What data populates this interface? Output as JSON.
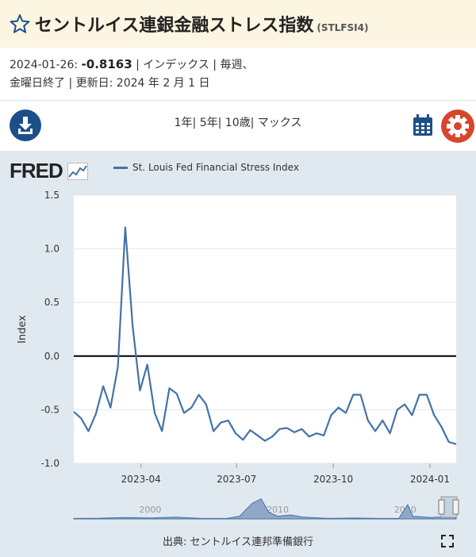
{
  "header": {
    "title": "セントルイス連銀金融ストレス指数",
    "code": "(STLFSI4)"
  },
  "meta": {
    "date": "2024-01-26:",
    "value": "-0.8163",
    "units_freq": "| インデックス | 毎週、",
    "line2": "金曜日終了 | 更新日: 2024 年 2 月 1 日"
  },
  "ranges": [
    "1年",
    "5年",
    "10歳",
    "マックス"
  ],
  "branding": {
    "logo": "FRED"
  },
  "source": "出典: セントルイス連邦準備銀行",
  "colors": {
    "series": "#4572a7",
    "header_bg": "#fbf5e1",
    "plot_bg": "#e1e9f0",
    "accent_blue": "#1b4f8a",
    "gear": "#d6452c"
  },
  "icons": [
    "star-icon",
    "download-icon",
    "calendar-icon",
    "gear-icon",
    "fred-chart-icon",
    "expand-icon"
  ],
  "chart_data": {
    "type": "line",
    "ylabel": "Index",
    "ylim": [
      -1.0,
      1.5
    ],
    "yticks": [
      1.5,
      1.0,
      0.5,
      0.0,
      -0.5,
      -1.0
    ],
    "ytick_labels": [
      "1.5",
      "1.0",
      "0.5",
      "0.0",
      "-0.5",
      "-1.0"
    ],
    "xticks": [
      {
        "date": "2023-04-01",
        "label": "2023-04"
      },
      {
        "date": "2023-07-01",
        "label": "2023-07"
      },
      {
        "date": "2023-10-01",
        "label": "2023-10"
      },
      {
        "date": "2024-01-01",
        "label": "2024-01"
      }
    ],
    "xrange": [
      "2023-01-27",
      "2024-01-26"
    ],
    "reference_line": 0,
    "grid": true,
    "legend": "top-left",
    "series": [
      {
        "name": "St. Louis Fed Financial Stress Index",
        "x": [
          "2023-01-27",
          "2023-02-03",
          "2023-02-10",
          "2023-02-17",
          "2023-02-24",
          "2023-03-03",
          "2023-03-10",
          "2023-03-17",
          "2023-03-24",
          "2023-03-31",
          "2023-04-07",
          "2023-04-14",
          "2023-04-21",
          "2023-04-28",
          "2023-05-05",
          "2023-05-12",
          "2023-05-19",
          "2023-05-26",
          "2023-06-02",
          "2023-06-09",
          "2023-06-16",
          "2023-06-23",
          "2023-06-30",
          "2023-07-07",
          "2023-07-14",
          "2023-07-21",
          "2023-07-28",
          "2023-08-04",
          "2023-08-11",
          "2023-08-18",
          "2023-08-25",
          "2023-09-01",
          "2023-09-08",
          "2023-09-15",
          "2023-09-22",
          "2023-09-29",
          "2023-10-06",
          "2023-10-13",
          "2023-10-20",
          "2023-10-27",
          "2023-11-03",
          "2023-11-10",
          "2023-11-17",
          "2023-11-24",
          "2023-12-01",
          "2023-12-08",
          "2023-12-15",
          "2023-12-22",
          "2023-12-29",
          "2024-01-05",
          "2024-01-12",
          "2024-01-19",
          "2024-01-26"
        ],
        "values": [
          -0.52,
          -0.58,
          -0.7,
          -0.54,
          -0.28,
          -0.48,
          -0.1,
          1.2,
          0.28,
          -0.32,
          -0.08,
          -0.53,
          -0.7,
          -0.3,
          -0.35,
          -0.53,
          -0.48,
          -0.36,
          -0.45,
          -0.7,
          -0.62,
          -0.6,
          -0.72,
          -0.78,
          -0.69,
          -0.74,
          -0.79,
          -0.75,
          -0.68,
          -0.67,
          -0.71,
          -0.68,
          -0.75,
          -0.72,
          -0.74,
          -0.55,
          -0.48,
          -0.53,
          -0.36,
          -0.36,
          -0.6,
          -0.7,
          -0.6,
          -0.72,
          -0.5,
          -0.45,
          -0.55,
          -0.36,
          -0.36,
          -0.55,
          -0.66,
          -0.8,
          -0.82
        ]
      }
    ],
    "navigator": {
      "labels": [
        "2000",
        "2010",
        "2020"
      ],
      "years": [
        2000,
        2010,
        2020
      ],
      "range_years": [
        1994,
        2024
      ],
      "x_years": [
        1994,
        1996,
        1998,
        2000,
        2002,
        2004,
        2006,
        2007,
        2008,
        2008.7,
        2009.3,
        2010,
        2011,
        2012,
        2014,
        2016,
        2018,
        2019.5,
        2020.2,
        2020.6,
        2022,
        2023.2,
        2023.4,
        2024
      ],
      "values": [
        0.1,
        0.15,
        0.3,
        0.2,
        0.4,
        0.1,
        0.1,
        0.6,
        3.5,
        4.5,
        1.5,
        0.6,
        0.9,
        0.4,
        0.1,
        0.2,
        0.1,
        0.1,
        3.2,
        0.6,
        0.3,
        0.5,
        1.2,
        0.1
      ]
    }
  }
}
